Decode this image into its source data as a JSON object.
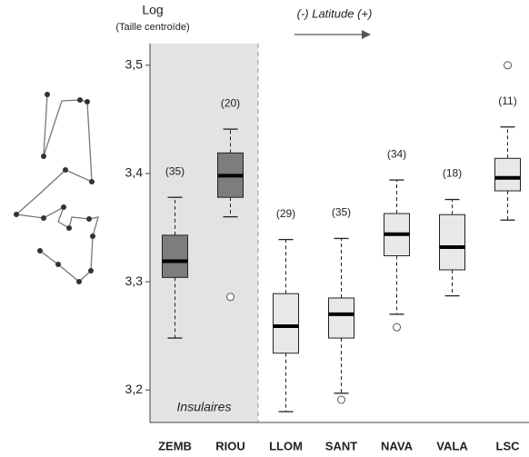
{
  "chart_data": {
    "type": "box",
    "y_title": "Log",
    "y_subtitle": "(Taille centroïde)",
    "annotation": "(-) Latitude (+)",
    "highlight": {
      "label": "Insulaires",
      "span": 2,
      "color": "#e3e3e3"
    },
    "categories": [
      "ZEMB",
      "RIOU",
      "LLOM",
      "SANT",
      "NAVA",
      "VALA",
      "LSC"
    ],
    "colors": [
      "#7d7d7d",
      "#7d7d7d",
      "#e8e8e8",
      "#e8e8e8",
      "#e8e8e8",
      "#e8e8e8",
      "#e8e8e8"
    ],
    "n_labels": [
      "(35)",
      "(20)",
      "(29)",
      "(35)",
      "(34)",
      "(18)",
      "(11)"
    ],
    "boxes": [
      {
        "whisker_low": 3.248,
        "q1": 3.304,
        "median": 3.319,
        "q3": 3.343,
        "whisker_high": 3.378,
        "outliers": []
      },
      {
        "whisker_low": 3.36,
        "q1": 3.378,
        "median": 3.398,
        "q3": 3.419,
        "whisker_high": 3.441,
        "outliers": [
          3.286
        ]
      },
      {
        "whisker_low": 3.18,
        "q1": 3.234,
        "median": 3.259,
        "q3": 3.289,
        "whisker_high": 3.339,
        "outliers": []
      },
      {
        "whisker_low": 3.197,
        "q1": 3.248,
        "median": 3.27,
        "q3": 3.285,
        "whisker_high": 3.34,
        "outliers": [
          3.191
        ]
      },
      {
        "whisker_low": 3.27,
        "q1": 3.324,
        "median": 3.344,
        "q3": 3.363,
        "whisker_high": 3.394,
        "outliers": [
          3.258
        ]
      },
      {
        "whisker_low": 3.287,
        "q1": 3.311,
        "median": 3.332,
        "q3": 3.362,
        "whisker_high": 3.376,
        "outliers": []
      },
      {
        "whisker_low": 3.357,
        "q1": 3.384,
        "median": 3.396,
        "q3": 3.414,
        "whisker_high": 3.443,
        "outliers": [
          3.5
        ]
      }
    ],
    "ylim": [
      3.17,
      3.52
    ],
    "yticks": [
      {
        "value": 3.2,
        "label": "3,2"
      },
      {
        "value": 3.3,
        "label": "3,3"
      },
      {
        "value": 3.4,
        "label": "3,4"
      },
      {
        "value": 3.5,
        "label": "3,5"
      }
    ]
  }
}
